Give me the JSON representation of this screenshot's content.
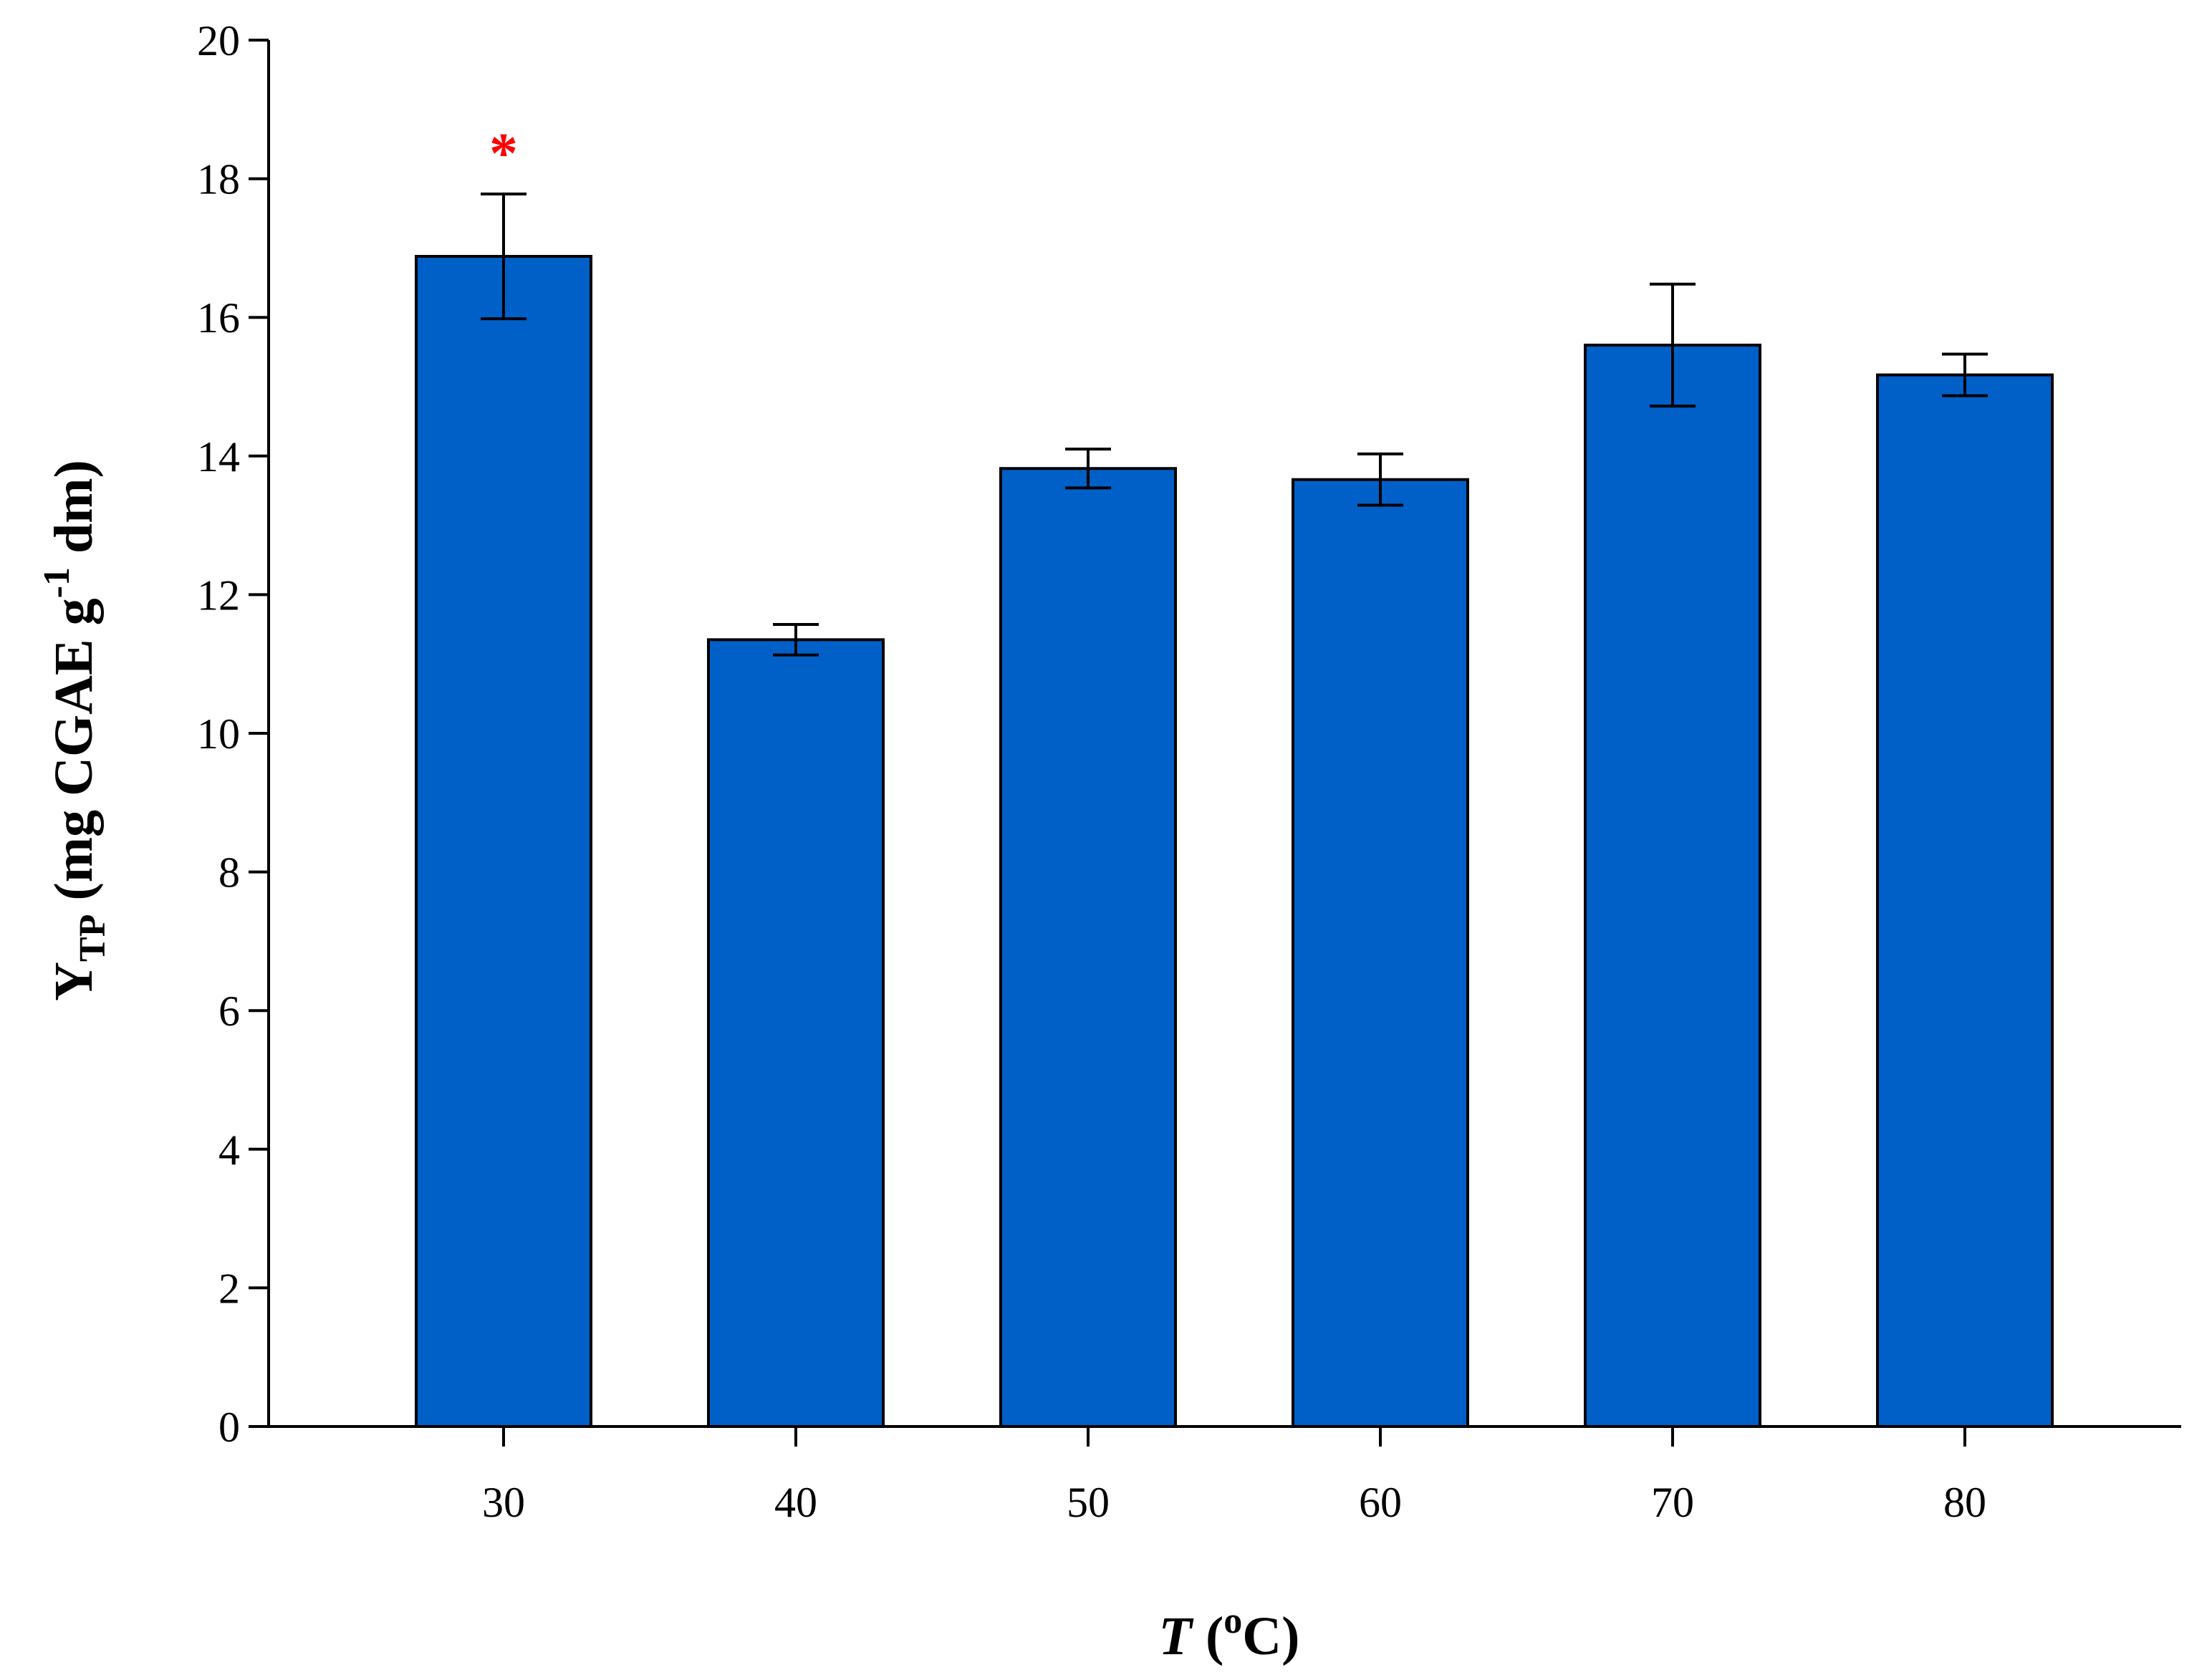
{
  "chart_data": {
    "type": "bar",
    "categories": [
      "30",
      "40",
      "50",
      "60",
      "70",
      "80"
    ],
    "values": [
      16.88,
      11.35,
      13.82,
      13.66,
      15.6,
      15.17
    ],
    "errors": [
      0.9,
      0.22,
      0.28,
      0.37,
      0.88,
      0.3
    ],
    "annotations": [
      {
        "category": "30",
        "text": "*",
        "color": "#ff0000"
      }
    ],
    "ylim": [
      0,
      20
    ],
    "yticks": [
      "0",
      "2",
      "4",
      "6",
      "8",
      "10",
      "12",
      "14",
      "16",
      "18",
      "20"
    ],
    "xlabel": {
      "italic": "T",
      "open": " (",
      "sup": "o",
      "rest": "C)"
    },
    "ylabel": {
      "main": "Y",
      "sub": "TP",
      "mid": " (mg CGAE g",
      "sup": "-1",
      "end": " dm)"
    },
    "bar_color": "#0060c8",
    "grid": false,
    "legend": "none"
  }
}
